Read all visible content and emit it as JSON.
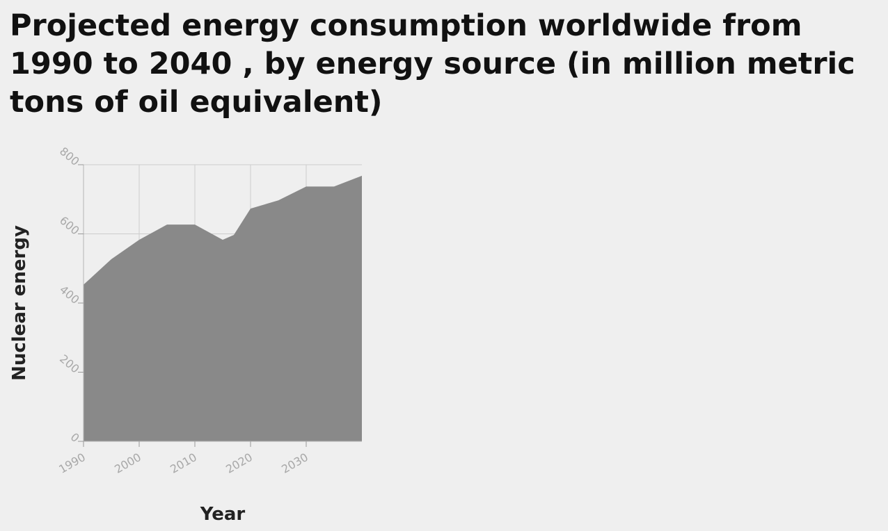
{
  "chart_data": {
    "type": "area",
    "title": "Projected energy consumption worldwide from 1990 to 2040 , by energy source (in million metric tons of oil equivalent)",
    "xlabel": "Year",
    "ylabel": "Nuclear energy",
    "x": [
      1990,
      1995,
      2000,
      2005,
      2010,
      2015,
      2017,
      2020,
      2025,
      2030,
      2035,
      2040
    ],
    "values": [
      453,
      527,
      583,
      627,
      627,
      583,
      597,
      673,
      697,
      737,
      737,
      768
    ],
    "xlim": [
      1990,
      2040
    ],
    "ylim": [
      0,
      800
    ],
    "xticks": [
      "1990",
      "2000",
      "2010",
      "2020",
      "2030"
    ],
    "xtick_values": [
      1990,
      2000,
      2010,
      2020,
      2030
    ],
    "yticks": [
      "0",
      "200",
      "400",
      "600",
      "800"
    ],
    "ytick_values": [
      0,
      200,
      400,
      600,
      800
    ],
    "grid": true,
    "legend": "none",
    "area_color": "#898989",
    "grid_color": "#cccccc"
  }
}
